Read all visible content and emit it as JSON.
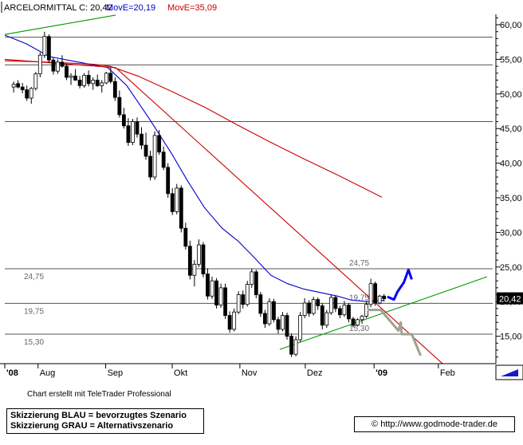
{
  "chart_data": {
    "type": "candlestick",
    "header": {
      "instrument": "ARCELORMITTAL C: 20,42",
      "ma_short": "MovE=20,19",
      "ma_long": "MovE=35,09"
    },
    "y_ticks": [
      "15,00",
      "20,00",
      "25,00",
      "30,00",
      "35,00",
      "40,00",
      "45,00",
      "50,00",
      "55,00",
      "60,00"
    ],
    "y_tick_values": [
      15,
      20,
      25,
      30,
      35,
      40,
      45,
      50,
      55,
      60
    ],
    "ylim": [
      11.5,
      61.5
    ],
    "x_labels": [
      {
        "label": "'08",
        "day": 0,
        "bold": true
      },
      {
        "label": "Aug",
        "day": 30
      },
      {
        "label": "Sep",
        "day": 91
      },
      {
        "label": "Okt",
        "day": 151
      },
      {
        "label": "Nov",
        "day": 212
      },
      {
        "label": "Dez",
        "day": 271
      },
      {
        "label": "'09",
        "day": 333,
        "bold": true
      },
      {
        "label": "Feb",
        "day": 391
      }
    ],
    "xlim": [
      0,
      440
    ],
    "last_price_label": "20,42",
    "last_price": 20.42,
    "horizontal_levels": [
      {
        "value": 58.2
      },
      {
        "value": 54.2
      },
      {
        "value": 46.0
      },
      {
        "value": 24.75,
        "left_label": "24,75",
        "right_label": "24,75"
      },
      {
        "value": 19.75,
        "left_label": "19,75",
        "right_label": "19,75"
      },
      {
        "value": 15.3,
        "left_label": "15,30",
        "right_label": "15,30"
      }
    ],
    "candles_ohlc": [
      [
        51.0,
        51.8,
        50.2,
        51.4
      ],
      [
        51.5,
        52.0,
        50.8,
        51.0
      ],
      [
        51.0,
        51.6,
        50.1,
        50.6
      ],
      [
        50.6,
        51.2,
        49.0,
        49.4
      ],
      [
        49.4,
        51.0,
        48.6,
        50.8
      ],
      [
        50.8,
        53.2,
        50.5,
        52.9
      ],
      [
        52.9,
        56.0,
        52.4,
        55.6
      ],
      [
        55.6,
        59.0,
        55.2,
        58.3
      ],
      [
        58.3,
        58.6,
        54.5,
        54.9
      ],
      [
        54.9,
        55.3,
        52.8,
        53.3
      ],
      [
        53.3,
        55.0,
        52.9,
        54.6
      ],
      [
        54.6,
        55.6,
        53.8,
        54.0
      ],
      [
        54.0,
        54.4,
        52.0,
        52.4
      ],
      [
        52.4,
        53.0,
        51.3,
        52.6
      ],
      [
        52.6,
        53.6,
        51.9,
        52.0
      ],
      [
        52.0,
        52.6,
        50.8,
        51.2
      ],
      [
        51.2,
        53.0,
        50.9,
        52.7
      ],
      [
        52.7,
        53.4,
        51.1,
        51.5
      ],
      [
        51.5,
        52.4,
        50.6,
        52.0
      ],
      [
        52.0,
        52.8,
        51.0,
        51.2
      ],
      [
        51.2,
        52.0,
        50.2,
        51.6
      ],
      [
        51.6,
        53.2,
        51.4,
        53.0
      ],
      [
        53.0,
        53.8,
        51.5,
        51.8
      ],
      [
        51.8,
        52.4,
        49.0,
        49.5
      ],
      [
        49.5,
        50.5,
        46.6,
        47.0
      ],
      [
        47.0,
        48.0,
        45.0,
        45.4
      ],
      [
        45.4,
        46.5,
        42.5,
        43.0
      ],
      [
        43.0,
        46.4,
        42.6,
        46.0
      ],
      [
        46.0,
        46.6,
        43.7,
        44.2
      ],
      [
        44.2,
        45.2,
        42.0,
        42.6
      ],
      [
        42.6,
        44.4,
        40.5,
        41.0
      ],
      [
        41.0,
        41.8,
        37.5,
        38.0
      ],
      [
        38.0,
        44.6,
        37.6,
        44.0
      ],
      [
        44.0,
        44.8,
        41.2,
        41.6
      ],
      [
        41.6,
        42.4,
        39.0,
        39.4
      ],
      [
        39.4,
        40.0,
        35.0,
        35.6
      ],
      [
        35.6,
        36.4,
        32.5,
        33.0
      ],
      [
        33.0,
        37.0,
        32.6,
        36.4
      ],
      [
        36.4,
        36.8,
        30.0,
        30.6
      ],
      [
        30.6,
        31.4,
        27.5,
        28.0
      ],
      [
        28.0,
        28.8,
        23.2,
        23.8
      ],
      [
        23.8,
        26.0,
        22.2,
        25.4
      ],
      [
        25.4,
        29.0,
        25.0,
        28.2
      ],
      [
        28.2,
        28.6,
        23.5,
        24.0
      ],
      [
        24.0,
        24.8,
        20.3,
        20.8
      ],
      [
        20.8,
        23.6,
        20.4,
        23.0
      ],
      [
        23.0,
        23.4,
        19.0,
        19.5
      ],
      [
        19.5,
        22.6,
        19.1,
        22.0
      ],
      [
        22.0,
        22.6,
        17.5,
        18.0
      ],
      [
        18.0,
        18.6,
        15.5,
        16.0
      ],
      [
        16.0,
        19.0,
        15.7,
        18.5
      ],
      [
        18.5,
        21.5,
        18.2,
        21.0
      ],
      [
        21.0,
        21.6,
        19.0,
        19.6
      ],
      [
        19.6,
        23.0,
        19.3,
        22.5
      ],
      [
        22.5,
        24.8,
        22.0,
        24.3
      ],
      [
        24.3,
        24.6,
        20.5,
        21.0
      ],
      [
        21.0,
        21.4,
        17.8,
        18.3
      ],
      [
        18.3,
        18.8,
        16.2,
        16.8
      ],
      [
        16.8,
        20.5,
        16.5,
        20.0
      ],
      [
        20.0,
        20.4,
        17.0,
        17.4
      ],
      [
        17.4,
        17.8,
        15.4,
        16.0
      ],
      [
        16.0,
        18.5,
        15.7,
        18.0
      ],
      [
        18.0,
        18.4,
        14.5,
        15.0
      ],
      [
        15.0,
        15.4,
        12.0,
        12.4
      ],
      [
        12.4,
        15.0,
        12.1,
        14.5
      ],
      [
        14.5,
        18.5,
        14.2,
        18.0
      ],
      [
        18.0,
        20.5,
        17.6,
        19.8
      ],
      [
        19.8,
        20.2,
        17.8,
        18.3
      ],
      [
        18.3,
        20.7,
        18.0,
        20.3
      ],
      [
        20.3,
        20.6,
        18.8,
        19.4
      ],
      [
        19.4,
        19.8,
        16.0,
        16.6
      ],
      [
        16.6,
        18.8,
        16.2,
        18.4
      ],
      [
        18.4,
        21.0,
        18.1,
        20.6
      ],
      [
        20.6,
        20.9,
        18.5,
        19.0
      ],
      [
        19.0,
        19.4,
        17.6,
        18.1
      ],
      [
        18.1,
        20.1,
        17.8,
        19.5
      ],
      [
        19.5,
        19.8,
        17.0,
        17.5
      ],
      [
        17.5,
        17.8,
        16.3,
        16.6
      ],
      [
        16.6,
        17.6,
        16.4,
        17.4
      ],
      [
        17.4,
        18.1,
        16.8,
        17.9
      ],
      [
        17.9,
        20.0,
        17.6,
        19.6
      ],
      [
        19.6,
        23.3,
        19.2,
        22.6
      ],
      [
        22.6,
        22.9,
        19.4,
        19.8
      ],
      [
        19.8,
        21.0,
        19.6,
        20.8
      ],
      [
        20.8,
        21.1,
        20.0,
        20.42
      ]
    ],
    "series": [
      {
        "name": "MovE=20,19",
        "color": "#0000cc",
        "points": [
          [
            0,
            58.5
          ],
          [
            20,
            57.2
          ],
          [
            40,
            55.4
          ],
          [
            60,
            54.8
          ],
          [
            80,
            54.2
          ],
          [
            93,
            53.8
          ],
          [
            110,
            51.2
          ],
          [
            130,
            46.5
          ],
          [
            150,
            41.5
          ],
          [
            165,
            37.4
          ],
          [
            180,
            33.6
          ],
          [
            196,
            30.6
          ],
          [
            210,
            28.8
          ],
          [
            226,
            26.2
          ],
          [
            240,
            23.8
          ],
          [
            255,
            22.6
          ],
          [
            270,
            21.8
          ],
          [
            285,
            21.3
          ],
          [
            300,
            20.8
          ],
          [
            313,
            20.2
          ],
          [
            328,
            20.0
          ],
          [
            342,
            20.19
          ]
        ]
      },
      {
        "name": "MovE=35,09",
        "color": "#cc0000",
        "points": [
          [
            0,
            54.8
          ],
          [
            40,
            54.6
          ],
          [
            80,
            54.3
          ],
          [
            95,
            54.0
          ],
          [
            120,
            52.6
          ],
          [
            150,
            50.4
          ],
          [
            180,
            48.1
          ],
          [
            210,
            45.5
          ],
          [
            240,
            43.0
          ],
          [
            270,
            40.6
          ],
          [
            300,
            38.3
          ],
          [
            325,
            36.3
          ],
          [
            340,
            35.09
          ]
        ]
      },
      {
        "name": "",
        "color": "#009900",
        "points": [
          [
            0,
            58.6
          ],
          [
            100,
            61.4
          ]
        ]
      },
      {
        "name": "",
        "color": "#cc0000",
        "points": [
          [
            0,
            55.0
          ],
          [
            100,
            53.8
          ],
          [
            395,
            11.0
          ]
        ]
      },
      {
        "name": "",
        "color": "#009900",
        "points": [
          [
            248,
            13.1
          ],
          [
            435,
            23.6
          ]
        ]
      }
    ],
    "scenarios": [
      {
        "name": "Skizzierung BLAU",
        "color": "#0000ff",
        "points": [
          [
            345,
            20.7
          ],
          [
            351,
            20.3
          ],
          [
            354,
            21.4
          ],
          [
            360,
            22.8
          ],
          [
            364,
            24.6
          ],
          [
            367,
            23.2
          ]
        ]
      },
      {
        "name": "Skizzierung GRAU",
        "color": "#a0a090",
        "points": [
          [
            327,
            18.8
          ],
          [
            339,
            18.8
          ],
          [
            355,
            15.8
          ],
          [
            357,
            17.0
          ],
          [
            358,
            15.3
          ],
          [
            367,
            15.3
          ],
          [
            375,
            12.2
          ]
        ]
      }
    ]
  },
  "footer": {
    "credit": "Chart erstellt mit TeleTrader Professional",
    "legend_line1": "Skizzierung BLAU = bevorzugtes Szenario",
    "legend_line2": "Skizzierung GRAU = Alternativszenario",
    "url": "© http://www.godmode-trader.de"
  }
}
